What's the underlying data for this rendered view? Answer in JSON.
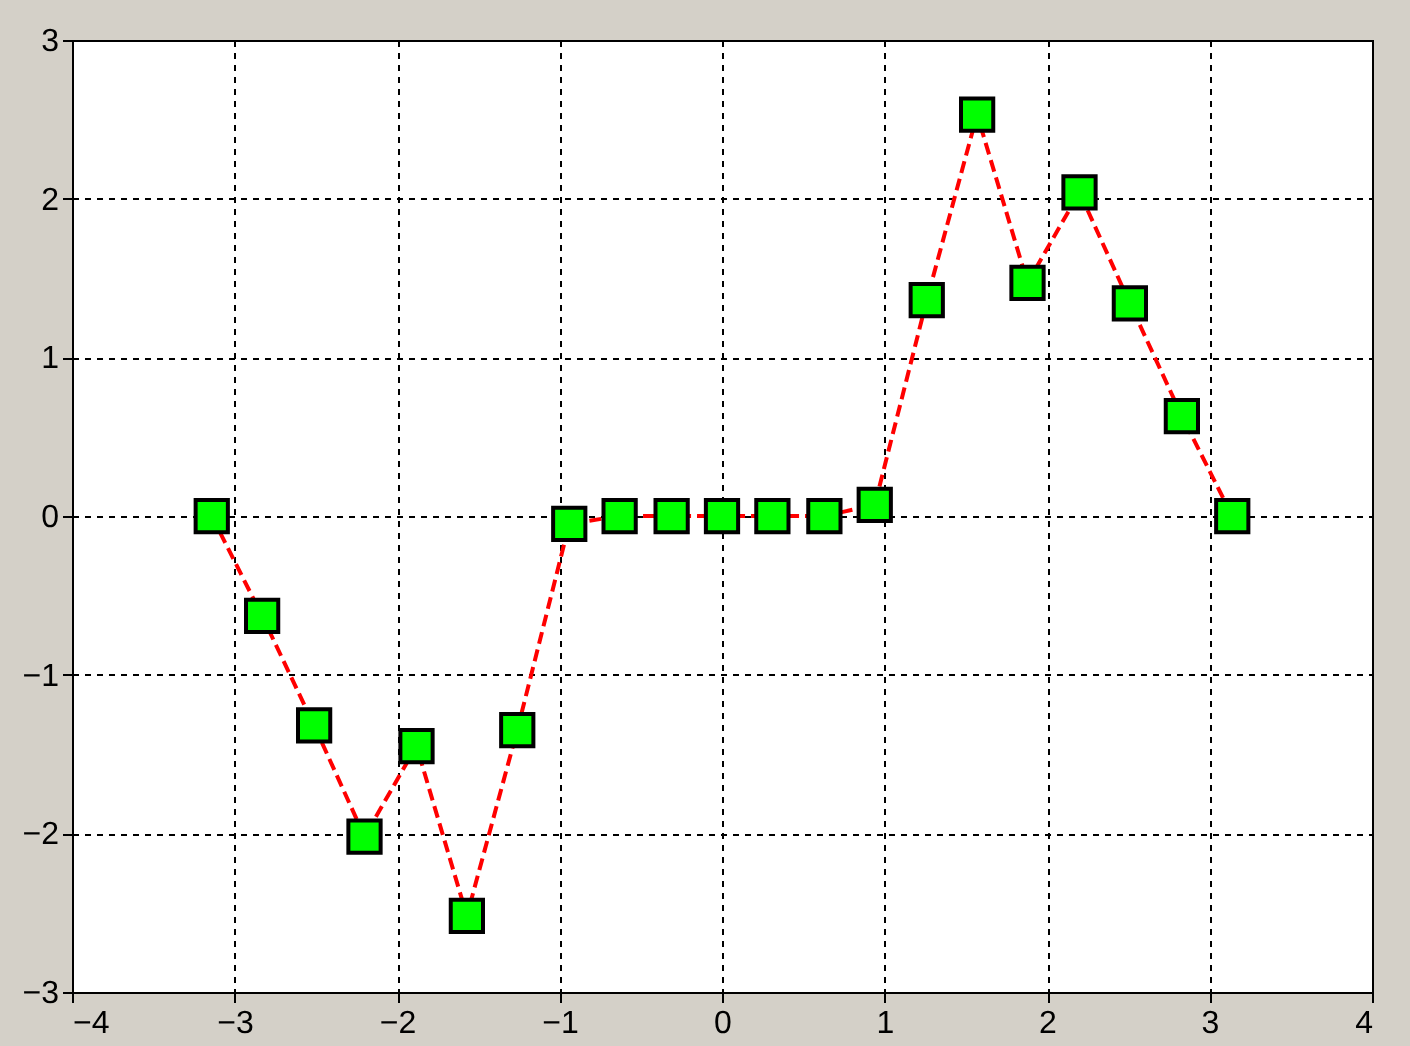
{
  "chart_data": {
    "type": "line",
    "x": [
      -3.14,
      -2.83,
      -2.51,
      -2.2,
      -1.88,
      -1.57,
      -1.26,
      -0.94,
      -0.63,
      -0.31,
      0,
      0.31,
      0.63,
      0.94,
      1.26,
      1.57,
      1.88,
      2.2,
      2.51,
      2.83,
      3.14
    ],
    "series": [
      {
        "color": "#ff0000",
        "colors": [
          "#00ff00",
          "#00ff00",
          "#00ff00",
          "#00ff00",
          "#00ff00",
          "#00ff00",
          "#00ff00",
          "#00ff00",
          "#00ff00",
          "#00ff00",
          "#00ff00",
          "#00ff00",
          "#00ff00",
          "#00ff00",
          "#00ff00",
          "#00ff00",
          "#00ff00",
          "#00ff00",
          "#00ff00",
          "#00ff00",
          "#00ff00"
        ],
        "values": [
          0,
          -0.63,
          -1.32,
          -2.02,
          -1.45,
          -2.52,
          -1.35,
          -0.05,
          0,
          0,
          0,
          0,
          0,
          0.07,
          1.36,
          2.53,
          1.47,
          2.04,
          1.34,
          0.63,
          0
        ]
      }
    ],
    "xlim": [
      -4,
      4
    ],
    "xticks": [
      -4,
      -3,
      -2,
      -1,
      0,
      1,
      2,
      3,
      4
    ],
    "ylim": [
      -3,
      3
    ],
    "yticks": [
      -3,
      -2,
      -1,
      0,
      1,
      2,
      3
    ],
    "grid": true,
    "marker": "square",
    "line_style": "dashed"
  }
}
